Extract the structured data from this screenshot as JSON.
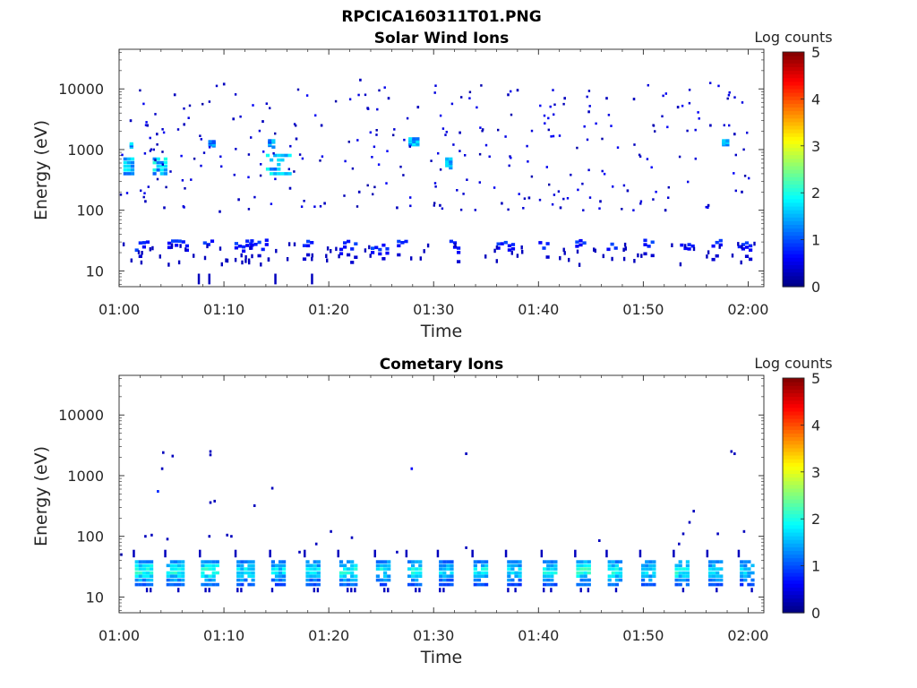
{
  "figure": {
    "title": "RPCICA160311T01.PNG"
  },
  "chart_data": [
    {
      "type": "heatmap",
      "title": "Solar Wind Ions",
      "xlabel": "Time",
      "ylabel": "Energy (eV)",
      "x_ticks": [
        "01:00",
        "01:10",
        "01:20",
        "01:30",
        "01:40",
        "01:50",
        "02:00"
      ],
      "x_range_minutes": [
        0,
        61.5
      ],
      "y_scale": "log",
      "y_ticks": [
        "10",
        "100",
        "1000",
        "10000"
      ],
      "y_range_eV": [
        5.5,
        45000
      ],
      "colorbar": {
        "label": "Log counts",
        "range": [
          0,
          5
        ],
        "ticks": [
          "0",
          "1",
          "2",
          "3",
          "4",
          "5"
        ],
        "colormap": "jet"
      },
      "background_band": {
        "energy_eV": [
          22,
          32
        ],
        "median_log_count": 0.6,
        "active_windows_min": [
          [
            1.5,
            2.8
          ],
          [
            4.6,
            5.4
          ],
          [
            5.6,
            6.4
          ],
          [
            8,
            8.8
          ],
          [
            11,
            12.5
          ],
          [
            12.5,
            14.2
          ],
          [
            17.5,
            18.5
          ],
          [
            21,
            22.5
          ],
          [
            24,
            25.5
          ],
          [
            26.5,
            27.5
          ],
          [
            31.5,
            32.5
          ],
          [
            36,
            37.5
          ],
          [
            40,
            40.8
          ],
          [
            43.5,
            44.5
          ],
          [
            46.5,
            47.5
          ],
          [
            50,
            51
          ],
          [
            53.5,
            54.8
          ],
          [
            56.5,
            57.5
          ],
          [
            59,
            60.2
          ]
        ]
      },
      "proton_clusters": [
        {
          "t": [
            0.4,
            1.4
          ],
          "e": [
            400,
            700
          ],
          "log_count": 1.9
        },
        {
          "t": [
            1.0,
            1.3
          ],
          "e": [
            1100,
            1400
          ],
          "log_count": 1.8
        },
        {
          "t": [
            3.2,
            4.4
          ],
          "e": [
            400,
            700
          ],
          "log_count": 2.0
        },
        {
          "t": [
            8.5,
            9.1
          ],
          "e": [
            1150,
            1350
          ],
          "log_count": 1.6
        },
        {
          "t": [
            14.0,
            16.2
          ],
          "e": [
            400,
            800
          ],
          "log_count": 1.9
        },
        {
          "t": [
            14.2,
            14.7
          ],
          "e": [
            1100,
            1400
          ],
          "log_count": 1.7
        },
        {
          "t": [
            27.6,
            28.6
          ],
          "e": [
            1200,
            1500
          ],
          "log_count": 1.8
        },
        {
          "t": [
            31.1,
            31.5
          ],
          "e": [
            500,
            700
          ],
          "log_count": 1.8
        },
        {
          "t": [
            57.5,
            58.0
          ],
          "e": [
            1200,
            1400
          ],
          "log_count": 1.9
        }
      ],
      "low_energy_features": [
        {
          "t": 7.5,
          "e": [
            6,
            9
          ],
          "log_count": 0.3
        },
        {
          "t": 8.5,
          "e": [
            6,
            9
          ],
          "log_count": 0.3
        },
        {
          "t": 14.8,
          "e": [
            6,
            9
          ],
          "log_count": 0.3
        },
        {
          "t": 18.3,
          "e": [
            6,
            9
          ],
          "log_count": 0.3
        }
      ],
      "scattered_points": [
        {
          "t": 1.0,
          "e": 3000,
          "c": 0.3
        },
        {
          "t": 2.6,
          "e": 2500,
          "c": 0.3
        },
        {
          "t": 3.5,
          "e": 1800,
          "c": 0.3
        },
        {
          "t": 5.2,
          "e": 8000,
          "c": 0.3
        },
        {
          "t": 6.1,
          "e": 2600,
          "c": 0.3
        },
        {
          "t": 9.9,
          "e": 12000,
          "c": 0.3
        },
        {
          "t": 10.8,
          "e": 3200,
          "c": 0.3
        },
        {
          "t": 13.6,
          "e": 2900,
          "c": 0.3
        },
        {
          "t": 16.8,
          "e": 1500,
          "c": 0.3
        },
        {
          "t": 19.2,
          "e": 2500,
          "c": 0.3
        },
        {
          "t": 22.9,
          "e": 14000,
          "c": 0.3
        },
        {
          "t": 23.6,
          "e": 4800,
          "c": 0.3
        },
        {
          "t": 25.6,
          "e": 7000,
          "c": 0.3
        },
        {
          "t": 28.4,
          "e": 5000,
          "c": 0.3
        },
        {
          "t": 32.4,
          "e": 1900,
          "c": 0.3
        },
        {
          "t": 37.0,
          "e": 8000,
          "c": 0.3
        },
        {
          "t": 37.9,
          "e": 9500,
          "c": 0.3
        },
        {
          "t": 42.4,
          "e": 7000,
          "c": 0.3
        },
        {
          "t": 44.7,
          "e": 4200,
          "c": 0.3
        },
        {
          "t": 46.4,
          "e": 7000,
          "c": 0.3
        },
        {
          "t": 49.0,
          "e": 6800,
          "c": 0.3
        },
        {
          "t": 53.2,
          "e": 5000,
          "c": 0.3
        },
        {
          "t": 56.3,
          "e": 2500,
          "c": 0.3
        },
        {
          "t": 58.6,
          "e": 1800,
          "c": 0.3
        },
        {
          "t": 2.4,
          "e": 140,
          "c": 0.3
        },
        {
          "t": 4.2,
          "e": 110,
          "c": 0.3
        },
        {
          "t": 9.5,
          "e": 95,
          "c": 0.3
        },
        {
          "t": 11.3,
          "e": 150,
          "c": 0.3
        },
        {
          "t": 16.2,
          "e": 230,
          "c": 0.3
        },
        {
          "t": 19.5,
          "e": 130,
          "c": 0.3
        },
        {
          "t": 22.8,
          "e": 200,
          "c": 0.3
        },
        {
          "t": 26.4,
          "e": 110,
          "c": 0.3
        },
        {
          "t": 30.5,
          "e": 120,
          "c": 0.3
        },
        {
          "t": 36.4,
          "e": 130,
          "c": 0.3
        },
        {
          "t": 39.0,
          "e": 160,
          "c": 0.3
        },
        {
          "t": 42.0,
          "e": 110,
          "c": 0.3
        },
        {
          "t": 45.8,
          "e": 140,
          "c": 0.3
        },
        {
          "t": 48.4,
          "e": 210,
          "c": 0.3
        },
        {
          "t": 52.0,
          "e": 100,
          "c": 0.3
        },
        {
          "t": 56.1,
          "e": 120,
          "c": 0.3
        },
        {
          "t": 59.3,
          "e": 200,
          "c": 0.3
        }
      ]
    },
    {
      "type": "heatmap",
      "title": "Cometary Ions",
      "xlabel": "Time",
      "ylabel": "Energy (eV)",
      "x_ticks": [
        "01:00",
        "01:10",
        "01:20",
        "01:30",
        "01:40",
        "01:50",
        "02:00"
      ],
      "x_range_minutes": [
        0,
        61.5
      ],
      "y_scale": "log",
      "y_ticks": [
        "10",
        "100",
        "1000",
        "10000"
      ],
      "y_range_eV": [
        5.5,
        45000
      ],
      "colorbar": {
        "label": "Log counts",
        "range": [
          0,
          5
        ],
        "ticks": [
          "0",
          "1",
          "2",
          "3",
          "4",
          "5"
        ],
        "colormap": "jet"
      },
      "ion_pulses": [
        {
          "t": [
            1.5,
            3.2
          ],
          "peak_log_count": 2.3
        },
        {
          "t": [
            4.5,
            6.2
          ],
          "peak_log_count": 2.2
        },
        {
          "t": [
            7.8,
            9.4
          ],
          "peak_log_count": 2.3
        },
        {
          "t": [
            11.2,
            12.8
          ],
          "peak_log_count": 2.1
        },
        {
          "t": [
            14.5,
            15.6
          ],
          "peak_log_count": 2.0
        },
        {
          "t": [
            17.8,
            19.0
          ],
          "peak_log_count": 2.0
        },
        {
          "t": [
            21.0,
            22.6
          ],
          "peak_log_count": 2.2
        },
        {
          "t": [
            24.5,
            25.8
          ],
          "peak_log_count": 2.1
        },
        {
          "t": [
            27.5,
            28.7
          ],
          "peak_log_count": 2.2
        },
        {
          "t": [
            30.5,
            31.6
          ],
          "peak_log_count": 1.9
        },
        {
          "t": [
            33.8,
            35.0
          ],
          "peak_log_count": 2.1
        },
        {
          "t": [
            37.0,
            38.4
          ],
          "peak_log_count": 2.0
        },
        {
          "t": [
            40.4,
            41.6
          ],
          "peak_log_count": 2.1
        },
        {
          "t": [
            43.6,
            45.0
          ],
          "peak_log_count": 2.3
        },
        {
          "t": [
            46.6,
            48.0
          ],
          "peak_log_count": 2.2
        },
        {
          "t": [
            49.8,
            51.2
          ],
          "peak_log_count": 2.1
        },
        {
          "t": [
            53.0,
            54.4
          ],
          "peak_log_count": 2.3
        },
        {
          "t": [
            56.2,
            57.4
          ],
          "peak_log_count": 2.0
        },
        {
          "t": [
            59.2,
            60.3
          ],
          "peak_log_count": 1.9
        }
      ],
      "pulse_energy_eV": [
        15,
        40
      ],
      "scattered_points": [
        {
          "t": 3.6,
          "e": 550,
          "c": 0.8
        },
        {
          "t": 4.0,
          "e": 1300,
          "c": 0.3
        },
        {
          "t": 4.1,
          "e": 2400,
          "c": 0.3
        },
        {
          "t": 5.0,
          "e": 2100,
          "c": 0.3
        },
        {
          "t": 8.6,
          "e": 2500,
          "c": 0.3
        },
        {
          "t": 8.6,
          "e": 2200,
          "c": 0.3
        },
        {
          "t": 8.6,
          "e": 360,
          "c": 0.3
        },
        {
          "t": 9.0,
          "e": 380,
          "c": 0.3
        },
        {
          "t": 12.8,
          "e": 320,
          "c": 0.3
        },
        {
          "t": 14.5,
          "e": 620,
          "c": 0.3
        },
        {
          "t": 27.8,
          "e": 1300,
          "c": 0.6
        },
        {
          "t": 33.0,
          "e": 2300,
          "c": 0.3
        },
        {
          "t": 58.3,
          "e": 2500,
          "c": 0.3
        },
        {
          "t": 58.6,
          "e": 2300,
          "c": 0.3
        },
        {
          "t": 2.4,
          "e": 100,
          "c": 0.3
        },
        {
          "t": 3.0,
          "e": 105,
          "c": 0.3
        },
        {
          "t": 4.5,
          "e": 90,
          "c": 0.3
        },
        {
          "t": 8.5,
          "e": 100,
          "c": 0.3
        },
        {
          "t": 10.2,
          "e": 105,
          "c": 0.3
        },
        {
          "t": 10.6,
          "e": 100,
          "c": 0.3
        },
        {
          "t": 17.1,
          "e": 55,
          "c": 0.3
        },
        {
          "t": 18.7,
          "e": 75,
          "c": 0.3
        },
        {
          "t": 20.1,
          "e": 120,
          "c": 0.3
        },
        {
          "t": 22.1,
          "e": 95,
          "c": 0.3
        },
        {
          "t": 26.4,
          "e": 55,
          "c": 0.3
        },
        {
          "t": 33.0,
          "e": 65,
          "c": 0.3
        },
        {
          "t": 45.7,
          "e": 85,
          "c": 0.3
        },
        {
          "t": 53.3,
          "e": 75,
          "c": 0.3
        },
        {
          "t": 53.7,
          "e": 110,
          "c": 0.3
        },
        {
          "t": 54.3,
          "e": 170,
          "c": 0.3
        },
        {
          "t": 54.7,
          "e": 260,
          "c": 0.3
        },
        {
          "t": 57.0,
          "e": 110,
          "c": 0.3
        },
        {
          "t": 59.5,
          "e": 120,
          "c": 0.3
        },
        {
          "t": 0.1,
          "e": 50,
          "c": 0.3
        }
      ]
    }
  ]
}
